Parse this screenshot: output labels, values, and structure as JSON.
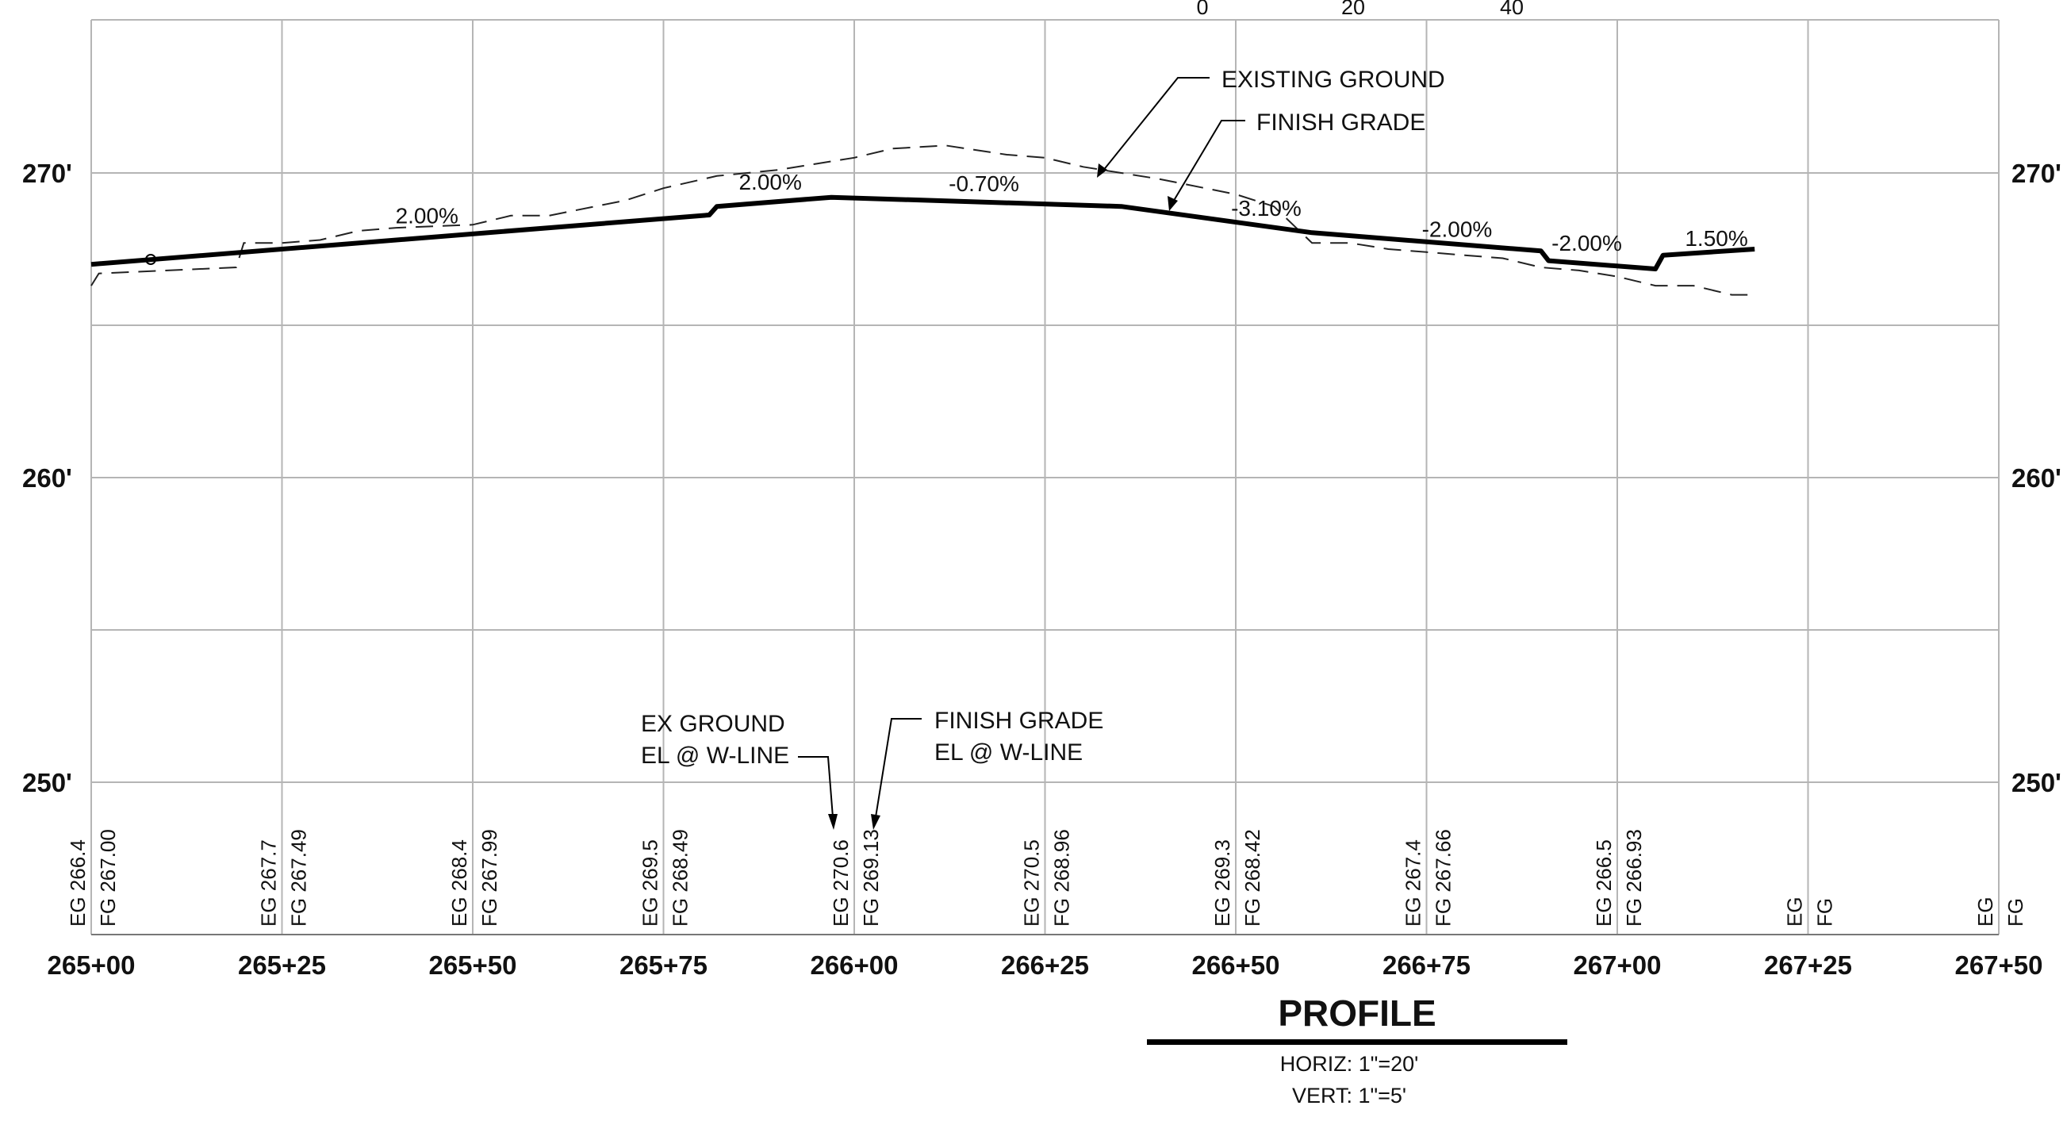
{
  "scale_bar": {
    "labels": [
      "0",
      "20",
      "40"
    ]
  },
  "elevation_labels": [
    "270'",
    "260'",
    "250'"
  ],
  "station_labels": [
    "265+00",
    "265+25",
    "265+50",
    "265+75",
    "266+00",
    "266+25",
    "266+50",
    "266+75",
    "267+00",
    "267+25",
    "267+50"
  ],
  "callouts": {
    "existing_ground": "EXISTING GROUND",
    "finish_grade": "FINISH GRADE",
    "ex_ground_line1": "EX GROUND",
    "ex_ground_line2": "EL @ W-LINE",
    "finish_grade_line1": "FINISH GRADE",
    "finish_grade_line2": "EL @ W-LINE"
  },
  "title_block": {
    "title": "PROFILE",
    "horiz": "HORIZ:  1\"=20'",
    "vert": "VERT:  1\"=5'"
  },
  "chart_data": {
    "type": "line",
    "title": "PROFILE",
    "xlabel": "",
    "ylabel": "",
    "x_unit": "station_ft",
    "xlim": [
      26500,
      26750
    ],
    "ylim": [
      245,
      275
    ],
    "grid": true,
    "tick_labels": {
      "x": [
        "265+00",
        "265+25",
        "265+50",
        "265+75",
        "266+00",
        "266+25",
        "266+50",
        "266+75",
        "267+00",
        "267+25",
        "267+50"
      ],
      "y": [
        "270'",
        "260'",
        "250'"
      ]
    },
    "series": [
      {
        "name": "EXISTING GROUND",
        "style": "dashed",
        "x": [
          26500,
          26501,
          26519,
          26520,
          26525,
          26530,
          26535,
          26540,
          26550,
          26555,
          26560,
          26570,
          26575,
          26582,
          26590,
          26595,
          26600,
          26605,
          26612,
          26620,
          26625,
          26630,
          26635,
          26640,
          26650,
          26655,
          26660,
          26665,
          26670,
          26675,
          26680,
          26685,
          26690,
          26695,
          26700,
          26705,
          26710,
          26715,
          26718
        ],
        "y": [
          266.3,
          266.7,
          266.9,
          267.7,
          267.7,
          267.8,
          268.1,
          268.2,
          268.3,
          268.6,
          268.6,
          269.1,
          269.5,
          269.9,
          270.1,
          270.3,
          270.5,
          270.8,
          270.9,
          270.6,
          270.5,
          270.2,
          270.0,
          269.8,
          269.3,
          268.9,
          267.7,
          267.7,
          267.5,
          267.4,
          267.3,
          267.2,
          266.9,
          266.8,
          266.6,
          266.3,
          266.3,
          266.0,
          266.0
        ]
      },
      {
        "name": "FINISH GRADE",
        "style": "solid-heavy",
        "x": [
          26500,
          26581,
          26582,
          26597,
          26635,
          26660,
          26690,
          26691,
          26705,
          26706,
          26718
        ],
        "y": [
          267.0,
          268.62,
          268.9,
          269.2,
          268.9,
          268.04,
          267.44,
          267.12,
          266.85,
          267.3,
          267.5
        ]
      }
    ],
    "grade_labels": [
      {
        "text": "2.00%",
        "x": 26544,
        "y": 268.35
      },
      {
        "text": "2.00%",
        "x": 26589,
        "y": 269.45
      },
      {
        "text": "-0.70%",
        "x": 26617,
        "y": 269.4
      },
      {
        "text": "-3.10%",
        "x": 26654,
        "y": 268.6
      },
      {
        "text": "-2.00%",
        "x": 26679,
        "y": 267.9
      },
      {
        "text": "-2.00%",
        "x": 26696,
        "y": 267.45
      },
      {
        "text": "1.50%",
        "x": 26713,
        "y": 267.6
      }
    ],
    "elevation_table": [
      {
        "x": 26500,
        "eg": "EG 266.4",
        "fg": "FG 267.00"
      },
      {
        "x": 26525,
        "eg": "EG 267.7",
        "fg": "FG 267.49"
      },
      {
        "x": 26550,
        "eg": "EG 268.4",
        "fg": "FG 267.99"
      },
      {
        "x": 26575,
        "eg": "EG 269.5",
        "fg": "FG 268.49"
      },
      {
        "x": 26600,
        "eg": "EG 270.6",
        "fg": "FG 269.13"
      },
      {
        "x": 26625,
        "eg": "EG 270.5",
        "fg": "FG 268.96"
      },
      {
        "x": 26650,
        "eg": "EG 269.3",
        "fg": "FG 268.42"
      },
      {
        "x": 26675,
        "eg": "EG 267.4",
        "fg": "FG 267.66"
      },
      {
        "x": 26700,
        "eg": "EG 266.5",
        "fg": "FG 266.93"
      },
      {
        "x": 26725,
        "eg": "EG",
        "fg": "FG"
      },
      {
        "x": 26750,
        "eg": "EG",
        "fg": "FG"
      }
    ]
  }
}
